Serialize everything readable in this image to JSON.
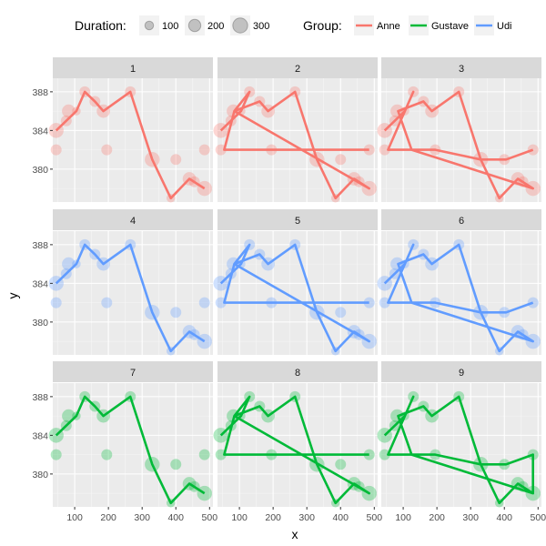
{
  "legend": {
    "size_title": "Duration:",
    "size_labels": [
      "100",
      "200",
      "300"
    ],
    "size_values": [
      100,
      200,
      300
    ],
    "color_title": "Group:",
    "groups": [
      {
        "name": "Anne",
        "color": "#F8766D"
      },
      {
        "name": "Gustave",
        "color": "#00BA38"
      },
      {
        "name": "Udi",
        "color": "#619CFF"
      }
    ]
  },
  "chart_data": {
    "type": "facet-path-scatter",
    "xlabel": "x",
    "ylabel": "y",
    "xlim": [
      35,
      510
    ],
    "ylim": [
      376.6,
      389.4
    ],
    "x_ticks": [
      100,
      200,
      300,
      400,
      500
    ],
    "y_ticks": [
      380,
      384,
      388
    ],
    "x_tick_labels": [
      "100",
      "200",
      "300",
      "400",
      "500"
    ],
    "y_tick_labels": [
      "380",
      "384",
      "388"
    ],
    "points": [
      {
        "x": 45,
        "y": 384.0,
        "duration": 300
      },
      {
        "x": 105,
        "y": 386.0,
        "duration": 100
      },
      {
        "x": 130,
        "y": 388.0,
        "duration": 160
      },
      {
        "x": 160,
        "y": 387.0,
        "duration": 160
      },
      {
        "x": 185,
        "y": 386.0,
        "duration": 240
      },
      {
        "x": 265,
        "y": 388.0,
        "duration": 160
      },
      {
        "x": 330,
        "y": 381.0,
        "duration": 300
      },
      {
        "x": 385,
        "y": 377.0,
        "duration": 100
      },
      {
        "x": 440,
        "y": 379.0,
        "duration": 240
      },
      {
        "x": 485,
        "y": 378.0,
        "duration": 300
      },
      {
        "x": 455,
        "y": 378.7,
        "duration": 160
      },
      {
        "x": 400,
        "y": 381.0,
        "duration": 160
      },
      {
        "x": 195,
        "y": 382.0,
        "duration": 160
      },
      {
        "x": 45,
        "y": 382.0,
        "duration": 160
      },
      {
        "x": 75,
        "y": 385.0,
        "duration": 160
      },
      {
        "x": 82,
        "y": 386.0,
        "duration": 240
      },
      {
        "x": 485,
        "y": 382.0,
        "duration": 160
      }
    ],
    "panels": [
      {
        "label": "1",
        "group": "Anne",
        "path": [
          [
            45,
            384
          ],
          [
            105,
            386
          ],
          [
            130,
            388
          ],
          [
            160,
            387
          ],
          [
            185,
            386
          ],
          [
            265,
            388
          ],
          [
            330,
            381
          ],
          [
            385,
            377
          ],
          [
            440,
            379
          ],
          [
            485,
            378
          ]
        ]
      },
      {
        "label": "2",
        "group": "Anne",
        "path": [
          [
            45,
            384
          ],
          [
            105,
            386
          ],
          [
            130,
            388
          ],
          [
            85,
            386
          ],
          [
            160,
            387
          ],
          [
            185,
            386
          ],
          [
            265,
            388
          ],
          [
            330,
            381
          ],
          [
            385,
            377
          ],
          [
            440,
            379
          ],
          [
            485,
            378
          ],
          [
            85,
            386
          ],
          [
            55,
            382
          ],
          [
            485,
            382
          ]
        ]
      },
      {
        "label": "3",
        "group": "Anne",
        "path": [
          [
            45,
            384
          ],
          [
            105,
            386
          ],
          [
            130,
            388
          ],
          [
            55,
            382
          ],
          [
            125,
            382
          ],
          [
            85,
            386
          ],
          [
            160,
            387
          ],
          [
            185,
            386
          ],
          [
            265,
            388
          ],
          [
            330,
            381
          ],
          [
            385,
            377
          ],
          [
            440,
            379
          ],
          [
            485,
            378
          ],
          [
            125,
            382
          ],
          [
            195,
            382
          ],
          [
            330,
            381
          ],
          [
            405,
            381
          ],
          [
            485,
            382
          ]
        ]
      },
      {
        "label": "4",
        "group": "Udi",
        "path": [
          [
            45,
            384
          ],
          [
            105,
            386
          ],
          [
            130,
            388
          ],
          [
            160,
            387
          ],
          [
            185,
            386
          ],
          [
            265,
            388
          ],
          [
            330,
            381
          ],
          [
            385,
            377
          ],
          [
            440,
            379
          ],
          [
            485,
            378
          ]
        ]
      },
      {
        "label": "5",
        "group": "Udi",
        "path": [
          [
            45,
            384
          ],
          [
            105,
            386
          ],
          [
            130,
            388
          ],
          [
            85,
            386
          ],
          [
            160,
            387
          ],
          [
            185,
            386
          ],
          [
            265,
            388
          ],
          [
            330,
            381
          ],
          [
            385,
            377
          ],
          [
            440,
            379
          ],
          [
            485,
            378
          ],
          [
            85,
            386
          ],
          [
            55,
            382
          ],
          [
            485,
            382
          ]
        ]
      },
      {
        "label": "6",
        "group": "Udi",
        "path": [
          [
            45,
            384
          ],
          [
            105,
            386
          ],
          [
            130,
            388
          ],
          [
            55,
            382
          ],
          [
            125,
            382
          ],
          [
            85,
            386
          ],
          [
            160,
            387
          ],
          [
            185,
            386
          ],
          [
            265,
            388
          ],
          [
            330,
            381
          ],
          [
            385,
            377
          ],
          [
            440,
            379
          ],
          [
            485,
            378
          ],
          [
            125,
            382
          ],
          [
            195,
            382
          ],
          [
            330,
            381
          ],
          [
            405,
            381
          ],
          [
            485,
            382
          ]
        ]
      },
      {
        "label": "7",
        "group": "Gustave",
        "path": [
          [
            45,
            384
          ],
          [
            105,
            386
          ],
          [
            130,
            388
          ],
          [
            160,
            387
          ],
          [
            185,
            386
          ],
          [
            265,
            388
          ],
          [
            330,
            381
          ],
          [
            385,
            377
          ],
          [
            440,
            379
          ],
          [
            485,
            378
          ]
        ]
      },
      {
        "label": "8",
        "group": "Gustave",
        "path": [
          [
            45,
            384
          ],
          [
            105,
            386
          ],
          [
            130,
            388
          ],
          [
            85,
            386
          ],
          [
            160,
            387
          ],
          [
            185,
            386
          ],
          [
            265,
            388
          ],
          [
            330,
            381
          ],
          [
            385,
            377
          ],
          [
            440,
            379
          ],
          [
            485,
            378
          ],
          [
            85,
            386
          ],
          [
            55,
            382
          ],
          [
            485,
            382
          ]
        ]
      },
      {
        "label": "9",
        "group": "Gustave",
        "path": [
          [
            45,
            384
          ],
          [
            105,
            386
          ],
          [
            130,
            388
          ],
          [
            55,
            382
          ],
          [
            125,
            382
          ],
          [
            85,
            386
          ],
          [
            160,
            387
          ],
          [
            185,
            386
          ],
          [
            265,
            388
          ],
          [
            330,
            381
          ],
          [
            405,
            381
          ],
          [
            485,
            382
          ],
          [
            485,
            378
          ],
          [
            125,
            382
          ],
          [
            195,
            382
          ],
          [
            330,
            381
          ],
          [
            385,
            377
          ],
          [
            440,
            379
          ],
          [
            485,
            378
          ]
        ]
      }
    ]
  }
}
